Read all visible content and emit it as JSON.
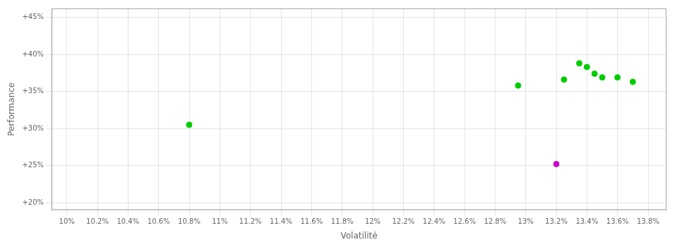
{
  "chart_data": {
    "type": "scatter",
    "xlabel": "Volatilité",
    "ylabel": "Performance",
    "xlim": [
      0.099,
      0.1392
    ],
    "ylim": [
      0.19,
      0.462
    ],
    "xticks": [
      {
        "value": 0.1,
        "label": "10%"
      },
      {
        "value": 0.102,
        "label": "10.2%"
      },
      {
        "value": 0.104,
        "label": "10.4%"
      },
      {
        "value": 0.106,
        "label": "10.6%"
      },
      {
        "value": 0.108,
        "label": "10.8%"
      },
      {
        "value": 0.11,
        "label": "11%"
      },
      {
        "value": 0.112,
        "label": "11.2%"
      },
      {
        "value": 0.114,
        "label": "11.4%"
      },
      {
        "value": 0.116,
        "label": "11.6%"
      },
      {
        "value": 0.118,
        "label": "11.8%"
      },
      {
        "value": 0.12,
        "label": "12%"
      },
      {
        "value": 0.122,
        "label": "12.2%"
      },
      {
        "value": 0.124,
        "label": "12.4%"
      },
      {
        "value": 0.126,
        "label": "12.6%"
      },
      {
        "value": 0.128,
        "label": "12.8%"
      },
      {
        "value": 0.13,
        "label": "13%"
      },
      {
        "value": 0.132,
        "label": "13.2%"
      },
      {
        "value": 0.134,
        "label": "13.4%"
      },
      {
        "value": 0.136,
        "label": "13.6%"
      },
      {
        "value": 0.138,
        "label": "13.8%"
      }
    ],
    "yticks": [
      {
        "value": 0.2,
        "label": "+20%"
      },
      {
        "value": 0.25,
        "label": "+25%"
      },
      {
        "value": 0.3,
        "label": "+30%"
      },
      {
        "value": 0.35,
        "label": "+35%"
      },
      {
        "value": 0.4,
        "label": "+40%"
      },
      {
        "value": 0.45,
        "label": "+45%"
      }
    ],
    "grid": true,
    "series": [
      {
        "color": "#00cc00",
        "x": [
          0.108,
          0.1295,
          0.1325,
          0.1335,
          0.134,
          0.1345,
          0.135,
          0.136,
          0.137
        ],
        "values": [
          0.305,
          0.358,
          0.366,
          0.388,
          0.383,
          0.374,
          0.369,
          0.369,
          0.363
        ]
      },
      {
        "color": "#cc00cc",
        "x": [
          0.132
        ],
        "values": [
          0.252
        ]
      }
    ]
  }
}
